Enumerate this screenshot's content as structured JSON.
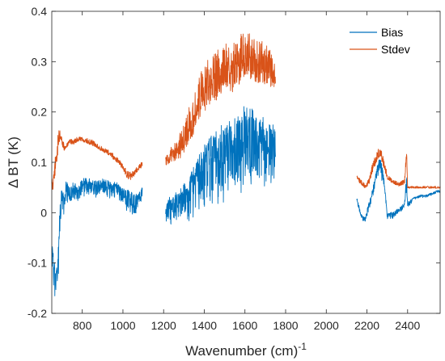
{
  "chart_data": {
    "type": "line",
    "title": "",
    "xlabel": "Wavenumber (cm)",
    "xlabel_superscript": "-1",
    "ylabel": "Δ BT (K)",
    "xlim": [
      650,
      2560
    ],
    "ylim": [
      -0.2,
      0.4
    ],
    "xticks": [
      800,
      1000,
      1200,
      1400,
      1600,
      1800,
      2000,
      2200,
      2400
    ],
    "xtick_labels": [
      "800",
      "1000",
      "1200",
      "1400",
      "1600",
      "1800",
      "2000",
      "2200",
      "2400"
    ],
    "yticks": [
      -0.2,
      -0.1,
      0,
      0.1,
      0.2,
      0.3,
      0.4
    ],
    "ytick_labels": [
      "-0.2",
      "-0.1",
      "0",
      "0.1",
      "0.2",
      "0.3",
      "0.4"
    ],
    "grid": false,
    "legend_position": "top-right",
    "series": [
      {
        "name": "Bias",
        "color": "#0072BD",
        "segments": [
          {
            "x": [
              650,
              660,
              670,
              680,
              690,
              700,
              710,
              720,
              740,
              760,
              780,
              800,
              830,
              860,
              900,
              940,
              980,
              1000,
              1020,
              1040,
              1060,
              1080,
              1095
            ],
            "y": [
              -0.05,
              -0.08,
              -0.12,
              -0.09,
              0.02,
              0.05,
              0.03,
              0.06,
              0.05,
              0.06,
              0.05,
              0.065,
              0.065,
              0.06,
              0.065,
              0.06,
              0.055,
              0.05,
              0.045,
              0.04,
              0.035,
              0.045,
              0.05
            ],
            "noise": [
              0.06,
              0.07,
              0.06,
              0.06,
              0.06,
              0.05,
              0.04,
              0.04,
              0.035,
              0.035,
              0.03,
              0.03,
              0.03,
              0.03,
              0.03,
              0.03,
              0.03,
              0.03,
              0.04,
              0.04,
              0.04,
              0.03,
              0.02
            ]
          },
          {
            "x": [
              1210,
              1240,
              1270,
              1300,
              1330,
              1360,
              1390,
              1420,
              1450,
              1480,
              1510,
              1540,
              1570,
              1600,
              1630,
              1660,
              1690,
              1720,
              1750
            ],
            "y": [
              0.02,
              0.03,
              0.04,
              0.05,
              0.07,
              0.1,
              0.12,
              0.14,
              0.15,
              0.16,
              0.17,
              0.18,
              0.19,
              0.2,
              0.2,
              0.19,
              0.18,
              0.17,
              0.16
            ],
            "noise": [
              0.04,
              0.05,
              0.05,
              0.06,
              0.08,
              0.1,
              0.12,
              0.12,
              0.13,
              0.13,
              0.13,
              0.13,
              0.14,
              0.14,
              0.14,
              0.14,
              0.13,
              0.12,
              0.1
            ]
          },
          {
            "x": [
              2150,
              2170,
              2190,
              2210,
              2230,
              2250,
              2265,
              2280,
              2300,
              2330,
              2360,
              2385,
              2395,
              2400,
              2430,
              2460,
              2490,
              2520,
              2550,
              2560
            ],
            "y": [
              0.03,
              0.0,
              -0.01,
              0.02,
              0.05,
              0.09,
              0.11,
              0.08,
              0.0,
              0.0,
              0.01,
              0.02,
              0.08,
              0.02,
              0.03,
              0.035,
              0.035,
              0.04,
              0.045,
              0.045
            ],
            "noise": [
              0.01,
              0.01,
              0.01,
              0.015,
              0.02,
              0.02,
              0.03,
              0.03,
              0.015,
              0.01,
              0.01,
              0.01,
              0.03,
              0.01,
              0.005,
              0.005,
              0.005,
              0.005,
              0.005,
              0.005
            ]
          }
        ]
      },
      {
        "name": "Stdev",
        "color": "#D95319",
        "segments": [
          {
            "x": [
              650,
              660,
              670,
              680,
              690,
              700,
              710,
              720,
              740,
              760,
              780,
              800,
              830,
              860,
              900,
              940,
              980,
              1000,
              1020,
              1040,
              1060,
              1080,
              1095
            ],
            "y": [
              0.05,
              0.06,
              0.1,
              0.13,
              0.15,
              0.14,
              0.13,
              0.13,
              0.14,
              0.14,
              0.145,
              0.145,
              0.14,
              0.135,
              0.125,
              0.115,
              0.1,
              0.09,
              0.075,
              0.07,
              0.08,
              0.09,
              0.095
            ],
            "noise": [
              0.03,
              0.03,
              0.04,
              0.04,
              0.03,
              0.02,
              0.015,
              0.01,
              0.01,
              0.01,
              0.01,
              0.01,
              0.01,
              0.01,
              0.01,
              0.01,
              0.01,
              0.01,
              0.015,
              0.015,
              0.01,
              0.01,
              0.01
            ]
          },
          {
            "x": [
              1210,
              1240,
              1270,
              1300,
              1330,
              1360,
              1390,
              1420,
              1450,
              1480,
              1510,
              1540,
              1570,
              1600,
              1630,
              1660,
              1690,
              1720,
              1750
            ],
            "y": [
              0.1,
              0.11,
              0.12,
              0.14,
              0.17,
              0.2,
              0.23,
              0.25,
              0.26,
              0.27,
              0.28,
              0.28,
              0.29,
              0.3,
              0.3,
              0.29,
              0.29,
              0.28,
              0.28
            ],
            "noise": [
              0.02,
              0.03,
              0.04,
              0.05,
              0.07,
              0.08,
              0.08,
              0.09,
              0.09,
              0.09,
              0.09,
              0.09,
              0.09,
              0.09,
              0.08,
              0.08,
              0.08,
              0.08,
              0.07
            ]
          },
          {
            "x": [
              2150,
              2170,
              2190,
              2210,
              2230,
              2250,
              2265,
              2280,
              2300,
              2330,
              2360,
              2385,
              2395,
              2400,
              2430,
              2460,
              2490,
              2520,
              2550,
              2560
            ],
            "y": [
              0.07,
              0.06,
              0.05,
              0.06,
              0.09,
              0.11,
              0.12,
              0.1,
              0.07,
              0.06,
              0.055,
              0.06,
              0.12,
              0.05,
              0.05,
              0.05,
              0.05,
              0.05,
              0.05,
              0.05
            ],
            "noise": [
              0.01,
              0.01,
              0.01,
              0.015,
              0.02,
              0.02,
              0.02,
              0.02,
              0.01,
              0.008,
              0.008,
              0.01,
              0.02,
              0.005,
              0.004,
              0.004,
              0.004,
              0.004,
              0.004,
              0.004
            ]
          }
        ]
      }
    ]
  }
}
